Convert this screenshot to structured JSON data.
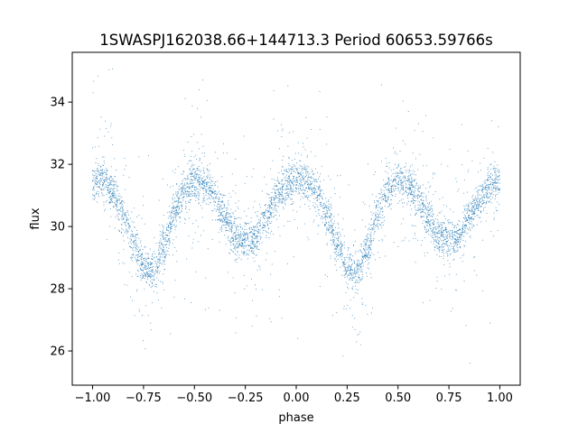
{
  "chart_data": {
    "type": "scatter",
    "title": "1SWASPJ162038.66+144713.3 Period 60653.59766s",
    "xlabel": "phase",
    "ylabel": "flux",
    "xlim": [
      -1.1,
      1.1
    ],
    "ylim": [
      24.9,
      35.6
    ],
    "x_ticks": [
      -1.0,
      -0.75,
      -0.5,
      -0.25,
      0.0,
      0.25,
      0.5,
      0.75,
      1.0
    ],
    "x_tick_labels": [
      "−1.00",
      "−0.75",
      "−0.50",
      "−0.25",
      "0.00",
      "0.25",
      "0.50",
      "0.75",
      "1.00"
    ],
    "y_ticks": [
      26,
      28,
      30,
      32,
      34
    ],
    "y_tick_labels": [
      "26",
      "28",
      "30",
      "32",
      "34"
    ],
    "grid": false,
    "legend": "none",
    "marker_color": "#1f77b4",
    "series": [
      {
        "phase": [
          -1.0,
          -0.95,
          -0.9,
          -0.85,
          -0.8,
          -0.75,
          -0.7,
          -0.65,
          -0.6,
          -0.55,
          -0.5,
          -0.45,
          -0.4,
          -0.35,
          -0.3,
          -0.25,
          -0.2,
          -0.15,
          -0.1,
          -0.05,
          0.0,
          0.05,
          0.1,
          0.15,
          0.2,
          0.25,
          0.3,
          0.35,
          0.4,
          0.45,
          0.5,
          0.55,
          0.6,
          0.65,
          0.7,
          0.75,
          0.8,
          0.85,
          0.9,
          0.95,
          1.0
        ],
        "flux": [
          31.5,
          31.5,
          31.1,
          30.4,
          29.5,
          28.7,
          28.5,
          29.3,
          30.4,
          31.2,
          31.5,
          31.4,
          30.9,
          30.3,
          29.7,
          29.6,
          29.7,
          30.3,
          30.9,
          31.3,
          31.5,
          31.5,
          31.1,
          30.4,
          29.5,
          28.7,
          28.5,
          29.3,
          30.4,
          31.2,
          31.5,
          31.4,
          30.9,
          30.3,
          29.7,
          29.6,
          29.7,
          30.3,
          30.9,
          31.3,
          31.5
        ]
      }
    ]
  }
}
